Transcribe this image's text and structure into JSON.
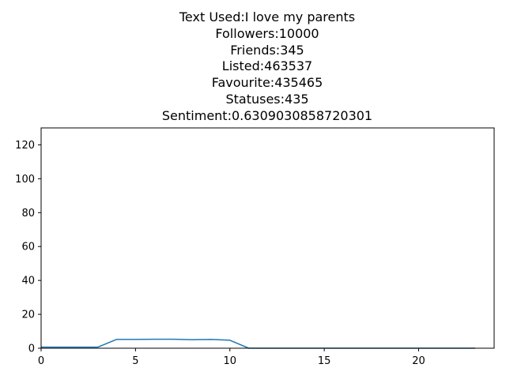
{
  "title_lines": [
    "Text Used:I love my parents",
    "Followers:10000",
    "Friends:345",
    "Listed:463537",
    "Favourite:435465",
    "Statuses:435",
    "Sentiment:0.6309030858720301"
  ],
  "chart_data": {
    "type": "line",
    "title": "Text Used:I love my parents\nFollowers:10000\nFriends:345\nListed:463537\nFavourite:435465\nStatuses:435\nSentiment:0.6309030858720301",
    "xlabel": "",
    "ylabel": "",
    "xlim": [
      0,
      24
    ],
    "ylim": [
      0,
      130
    ],
    "xticks": [
      0,
      5,
      10,
      15,
      20
    ],
    "yticks": [
      0,
      20,
      40,
      60,
      80,
      100,
      120
    ],
    "grid": false,
    "series": [
      {
        "color": "#1f77b4",
        "x": [
          0,
          1,
          2,
          3,
          4,
          5,
          6,
          7,
          8,
          9,
          10,
          11,
          12,
          13,
          14,
          15,
          16,
          17,
          18,
          19,
          20,
          21,
          22,
          23
        ],
        "y": [
          0.63,
          0.63,
          0.63,
          0.63,
          5.2,
          5.2,
          5.3,
          5.3,
          5.0,
          5.2,
          4.7,
          0,
          0,
          0,
          0,
          0,
          0,
          0,
          0,
          0,
          0,
          0,
          0,
          0
        ]
      }
    ]
  }
}
